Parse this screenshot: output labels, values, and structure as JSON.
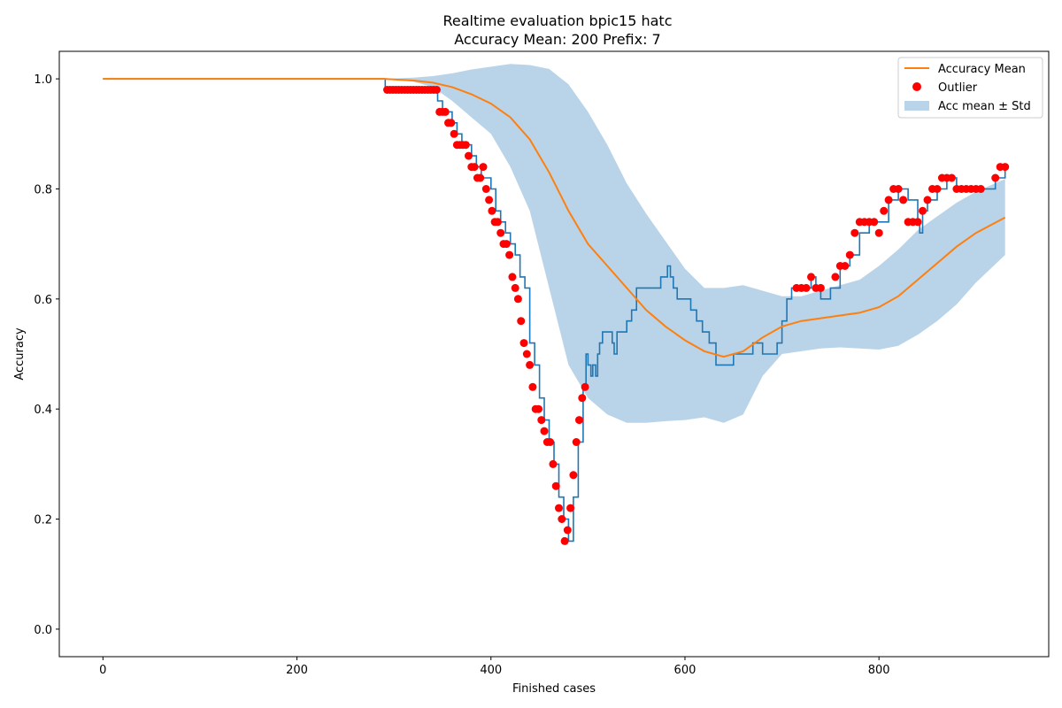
{
  "chart_data": {
    "type": "line",
    "title": "Realtime evaluation bpic15 hatc",
    "subtitle": "Accuracy Mean: 200 Prefix: 7",
    "xlabel": "Finished cases",
    "ylabel": "Accuracy",
    "xlim": [
      -45,
      975
    ],
    "ylim": [
      -0.05,
      1.05
    ],
    "x_ticks": [
      0,
      200,
      400,
      600,
      800
    ],
    "y_ticks": [
      0.0,
      0.2,
      0.4,
      0.6,
      0.8,
      1.0
    ],
    "x_tick_labels": [
      "0",
      "200",
      "400",
      "600",
      "800"
    ],
    "y_tick_labels": [
      "0.0",
      "0.2",
      "0.4",
      "0.6",
      "0.8",
      "1.0"
    ],
    "grid": false,
    "legend_position": "top-right",
    "legend": [
      {
        "label": "Accuracy Mean",
        "kind": "line",
        "color": "#ff7f0e"
      },
      {
        "label": "Outlier",
        "kind": "marker",
        "color": "#ff0000"
      },
      {
        "label": "Acc mean ± Std",
        "kind": "patch",
        "color": "#b9d4e8"
      }
    ],
    "colors": {
      "accuracy": "#1f77b4",
      "mean": "#ff7f0e",
      "outlier": "#ff0000",
      "band": "#b9d4e8"
    },
    "series": [
      {
        "key": "accuracy",
        "x": [
          0,
          290,
          291,
          293,
          343,
          345,
          350,
          355,
          360,
          365,
          370,
          375,
          380,
          385,
          390,
          395,
          400,
          405,
          410,
          415,
          420,
          425,
          430,
          435,
          440,
          445,
          450,
          455,
          460,
          465,
          470,
          475,
          480,
          485,
          490,
          495,
          498,
          500,
          503,
          505,
          508,
          510,
          512,
          515,
          520,
          525,
          527,
          530,
          535,
          540,
          545,
          550,
          555,
          560,
          565,
          570,
          575,
          578,
          582,
          585,
          588,
          592,
          600,
          606,
          612,
          618,
          625,
          632,
          638,
          650,
          660,
          670,
          680,
          690,
          695,
          700,
          705,
          710,
          720,
          730,
          735,
          740,
          745,
          750,
          760,
          770,
          780,
          790,
          800,
          810,
          820,
          830,
          840,
          842,
          845,
          850,
          860,
          870,
          880,
          890,
          900,
          910,
          920,
          930
        ],
        "y": [
          1.0,
          1.0,
          0.98,
          0.98,
          0.98,
          0.96,
          0.94,
          0.94,
          0.92,
          0.9,
          0.88,
          0.88,
          0.86,
          0.84,
          0.82,
          0.82,
          0.8,
          0.76,
          0.74,
          0.72,
          0.7,
          0.68,
          0.64,
          0.62,
          0.52,
          0.48,
          0.42,
          0.38,
          0.34,
          0.3,
          0.24,
          0.2,
          0.16,
          0.24,
          0.34,
          0.44,
          0.5,
          0.48,
          0.46,
          0.48,
          0.46,
          0.5,
          0.52,
          0.54,
          0.54,
          0.52,
          0.5,
          0.54,
          0.54,
          0.56,
          0.58,
          0.62,
          0.62,
          0.62,
          0.62,
          0.62,
          0.64,
          0.64,
          0.66,
          0.64,
          0.62,
          0.6,
          0.6,
          0.58,
          0.56,
          0.54,
          0.52,
          0.48,
          0.48,
          0.5,
          0.5,
          0.52,
          0.5,
          0.5,
          0.52,
          0.56,
          0.6,
          0.62,
          0.62,
          0.64,
          0.62,
          0.6,
          0.6,
          0.62,
          0.66,
          0.68,
          0.72,
          0.74,
          0.74,
          0.78,
          0.8,
          0.78,
          0.74,
          0.72,
          0.76,
          0.78,
          0.8,
          0.82,
          0.8,
          0.8,
          0.8,
          0.8,
          0.82,
          0.84
        ]
      },
      {
        "key": "mean",
        "name": "Accuracy Mean",
        "x": [
          0,
          290,
          320,
          340,
          360,
          380,
          400,
          420,
          440,
          460,
          480,
          500,
          520,
          540,
          560,
          580,
          600,
          620,
          640,
          660,
          680,
          700,
          720,
          740,
          760,
          780,
          800,
          820,
          840,
          860,
          880,
          900,
          930
        ],
        "y": [
          1.0,
          1.0,
          0.997,
          0.993,
          0.985,
          0.972,
          0.955,
          0.93,
          0.89,
          0.83,
          0.76,
          0.7,
          0.66,
          0.62,
          0.58,
          0.55,
          0.525,
          0.505,
          0.495,
          0.505,
          0.53,
          0.55,
          0.56,
          0.565,
          0.57,
          0.575,
          0.585,
          0.605,
          0.635,
          0.665,
          0.695,
          0.72,
          0.748
        ]
      }
    ],
    "band": {
      "name": "Acc mean ± Std",
      "x": [
        0,
        290,
        320,
        340,
        360,
        380,
        400,
        420,
        440,
        460,
        480,
        500,
        520,
        540,
        560,
        580,
        600,
        620,
        640,
        660,
        680,
        700,
        720,
        740,
        760,
        780,
        800,
        820,
        840,
        860,
        880,
        900,
        930
      ],
      "lower": [
        1.0,
        1.0,
        0.995,
        0.985,
        0.96,
        0.93,
        0.9,
        0.84,
        0.76,
        0.62,
        0.48,
        0.42,
        0.39,
        0.375,
        0.375,
        0.378,
        0.38,
        0.385,
        0.375,
        0.39,
        0.46,
        0.5,
        0.505,
        0.51,
        0.512,
        0.51,
        0.508,
        0.515,
        0.535,
        0.56,
        0.59,
        0.63,
        0.68
      ],
      "upper": [
        1.0,
        1.0,
        1.002,
        1.005,
        1.01,
        1.017,
        1.022,
        1.027,
        1.025,
        1.018,
        0.99,
        0.94,
        0.88,
        0.81,
        0.755,
        0.705,
        0.655,
        0.62,
        0.62,
        0.625,
        0.615,
        0.605,
        0.605,
        0.615,
        0.625,
        0.635,
        0.66,
        0.69,
        0.725,
        0.75,
        0.775,
        0.795,
        0.818
      ]
    },
    "outliers": {
      "name": "Outlier",
      "x": [
        293,
        296,
        299,
        302,
        305,
        308,
        311,
        314,
        317,
        320,
        323,
        326,
        329,
        332,
        335,
        338,
        341,
        344,
        347,
        350,
        353,
        356,
        359,
        362,
        365,
        368,
        371,
        374,
        377,
        380,
        383,
        386,
        389,
        392,
        395,
        398,
        401,
        404,
        407,
        410,
        413,
        416,
        419,
        422,
        425,
        428,
        431,
        434,
        437,
        440,
        443,
        446,
        449,
        452,
        455,
        458,
        461,
        464,
        467,
        470,
        473,
        476,
        479,
        482,
        485,
        488,
        491,
        494,
        497,
        715,
        720,
        725,
        730,
        735,
        740,
        755,
        760,
        765,
        770,
        775,
        780,
        785,
        790,
        795,
        800,
        805,
        810,
        815,
        820,
        825,
        830,
        835,
        840,
        845,
        850,
        855,
        860,
        865,
        870,
        875,
        880,
        885,
        890,
        895,
        900,
        905,
        920,
        925,
        930
      ],
      "y": [
        0.98,
        0.98,
        0.98,
        0.98,
        0.98,
        0.98,
        0.98,
        0.98,
        0.98,
        0.98,
        0.98,
        0.98,
        0.98,
        0.98,
        0.98,
        0.98,
        0.98,
        0.98,
        0.94,
        0.94,
        0.94,
        0.92,
        0.92,
        0.9,
        0.88,
        0.88,
        0.88,
        0.88,
        0.86,
        0.84,
        0.84,
        0.82,
        0.82,
        0.84,
        0.8,
        0.78,
        0.76,
        0.74,
        0.74,
        0.72,
        0.7,
        0.7,
        0.68,
        0.64,
        0.62,
        0.6,
        0.56,
        0.52,
        0.5,
        0.48,
        0.44,
        0.4,
        0.4,
        0.38,
        0.36,
        0.34,
        0.34,
        0.3,
        0.26,
        0.22,
        0.2,
        0.16,
        0.18,
        0.22,
        0.28,
        0.34,
        0.38,
        0.42,
        0.44,
        0.62,
        0.62,
        0.62,
        0.64,
        0.62,
        0.62,
        0.64,
        0.66,
        0.66,
        0.68,
        0.72,
        0.74,
        0.74,
        0.74,
        0.74,
        0.72,
        0.76,
        0.78,
        0.8,
        0.8,
        0.78,
        0.74,
        0.74,
        0.74,
        0.76,
        0.78,
        0.8,
        0.8,
        0.82,
        0.82,
        0.82,
        0.8,
        0.8,
        0.8,
        0.8,
        0.8,
        0.8,
        0.82,
        0.84,
        0.84
      ]
    }
  }
}
